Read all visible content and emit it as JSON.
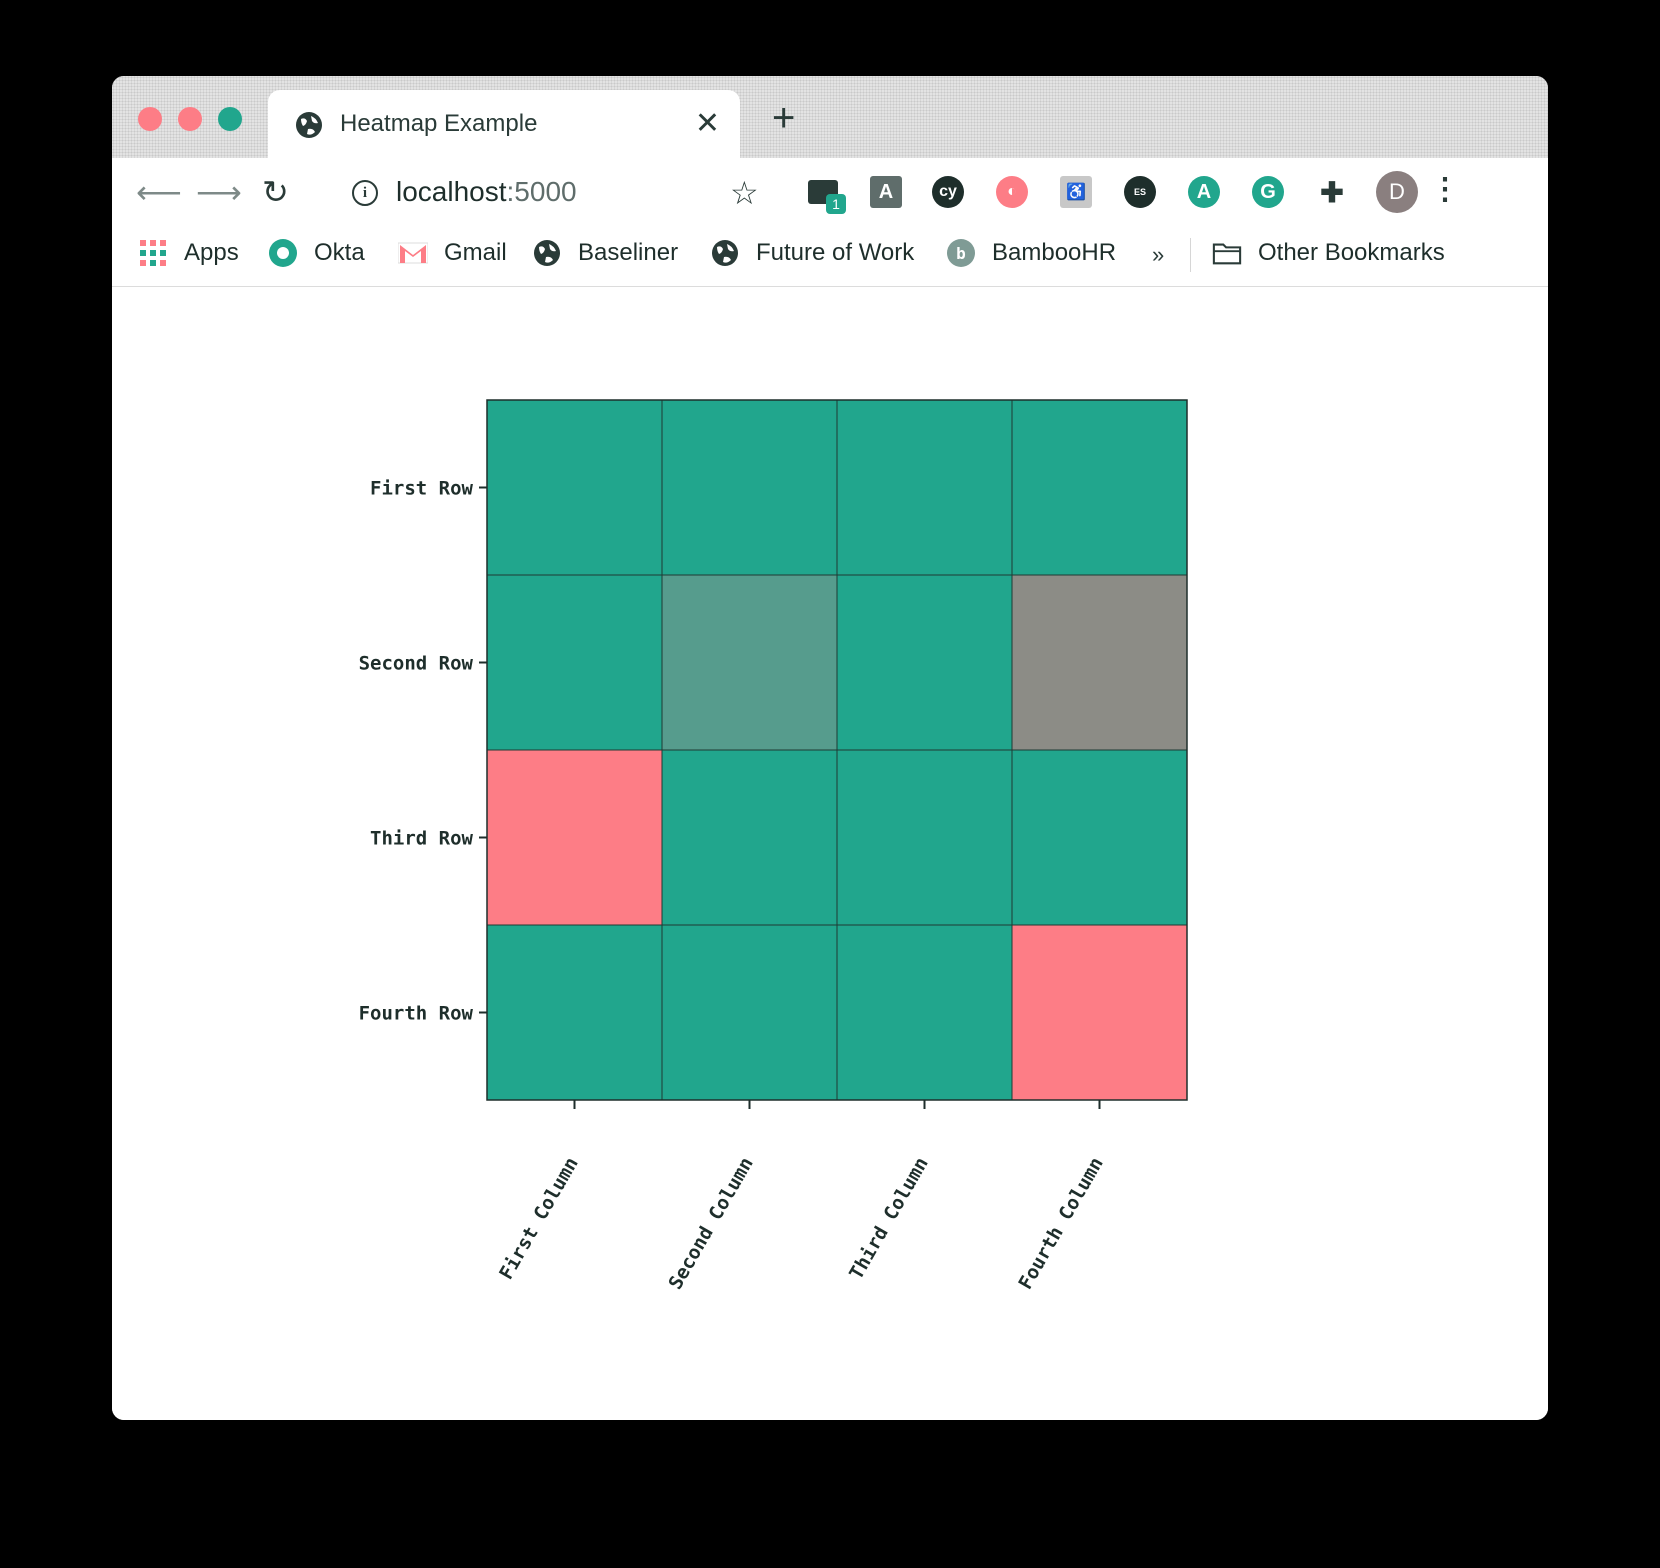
{
  "browser": {
    "tab": {
      "title": "Heatmap Example"
    },
    "address": {
      "host": "localhost",
      "port": ":5000"
    },
    "profile_initial": "D",
    "extension_badge": "1",
    "bookmarks": [
      {
        "label": "Apps",
        "icon": "apps-grid-icon"
      },
      {
        "label": "Okta",
        "icon": "okta-icon"
      },
      {
        "label": "Gmail",
        "icon": "gmail-icon"
      },
      {
        "label": "Baseliner",
        "icon": "globe-icon"
      },
      {
        "label": "Future of Work",
        "icon": "globe-icon"
      },
      {
        "label": "BambooHR",
        "icon": "bamboohr-icon"
      }
    ],
    "overflow": "»",
    "other_bookmarks": "Other Bookmarks"
  },
  "colors": {
    "teal": "#21a68d",
    "pink": "#fd7d86",
    "gray": "#8c8c86",
    "mid": "#569c8d",
    "dark": "#2a3b38"
  },
  "chart_data": {
    "type": "heatmap",
    "rows": [
      "First Row",
      "Second Row",
      "Third Row",
      "Fourth Row"
    ],
    "columns": [
      "First Column",
      "Second Column",
      "Third Column",
      "Fourth Column"
    ],
    "cell_colors": [
      [
        "#21a68d",
        "#21a68d",
        "#21a68d",
        "#21a68d"
      ],
      [
        "#21a68d",
        "#569c8d",
        "#21a68d",
        "#8c8c86"
      ],
      [
        "#fd7d86",
        "#21a68d",
        "#21a68d",
        "#21a68d"
      ],
      [
        "#21a68d",
        "#21a68d",
        "#21a68d",
        "#fd7d86"
      ]
    ],
    "title": "",
    "xlabel": "",
    "ylabel": ""
  }
}
